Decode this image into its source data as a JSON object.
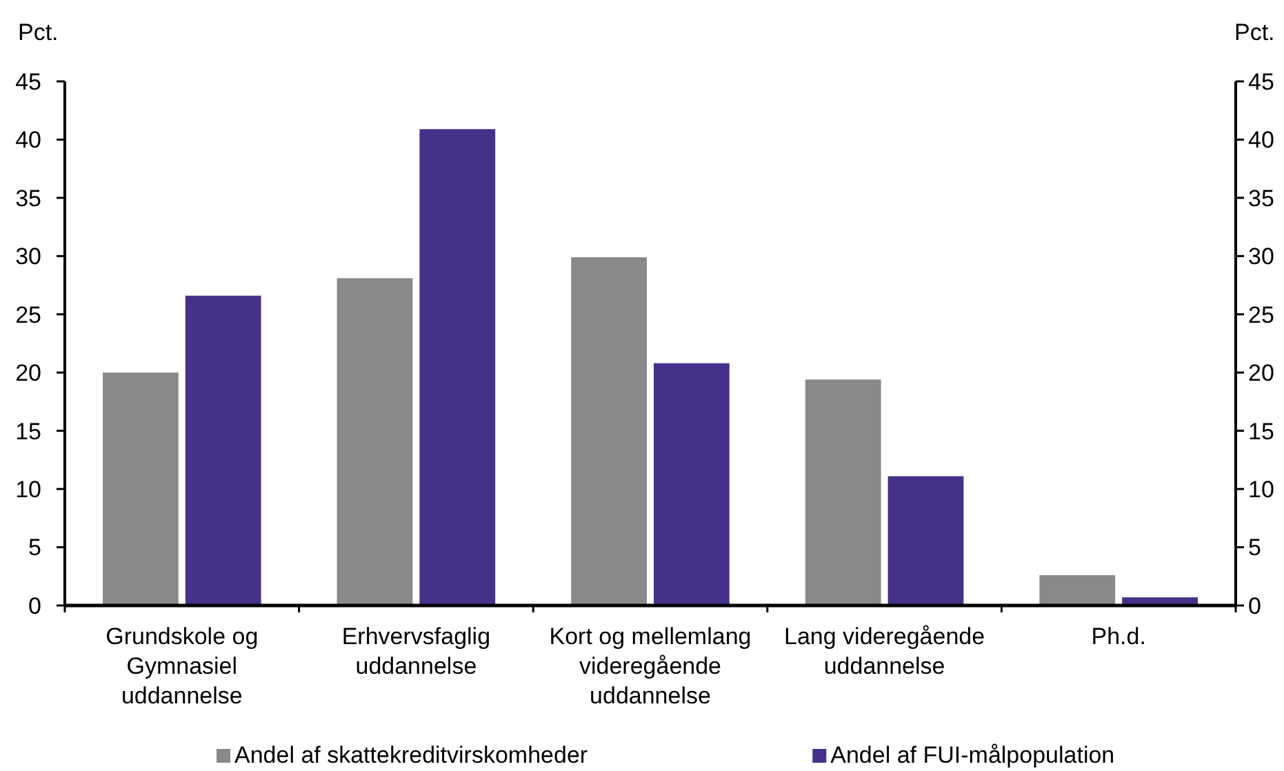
{
  "chart_data": {
    "type": "bar",
    "ylabel": "Pct.",
    "y2label": "Pct.",
    "categories": [
      "Grundskole og Gymnasiel uddannelse",
      "Erhvervsfaglig uddannelse",
      "Kort og mellemlang videregående uddannelse",
      "Lang videregående uddannelse",
      "Ph.d."
    ],
    "series": [
      {
        "name": "Andel af skattekreditvirskomheder",
        "color": "#898989",
        "values": [
          20.0,
          28.1,
          29.9,
          19.4,
          2.6
        ]
      },
      {
        "name": "Andel af FUI-målpopulation",
        "color": "#46318a",
        "values": [
          26.6,
          40.9,
          20.8,
          11.1,
          0.7
        ]
      }
    ],
    "ylim": [
      0,
      45
    ],
    "yticks": [
      0,
      5,
      10,
      15,
      20,
      25,
      30,
      35,
      40,
      45
    ],
    "y2lim": [
      0,
      45
    ],
    "y2ticks": [
      0,
      5,
      10,
      15,
      20,
      25,
      30,
      35,
      40,
      45
    ],
    "legend": "bottom"
  }
}
